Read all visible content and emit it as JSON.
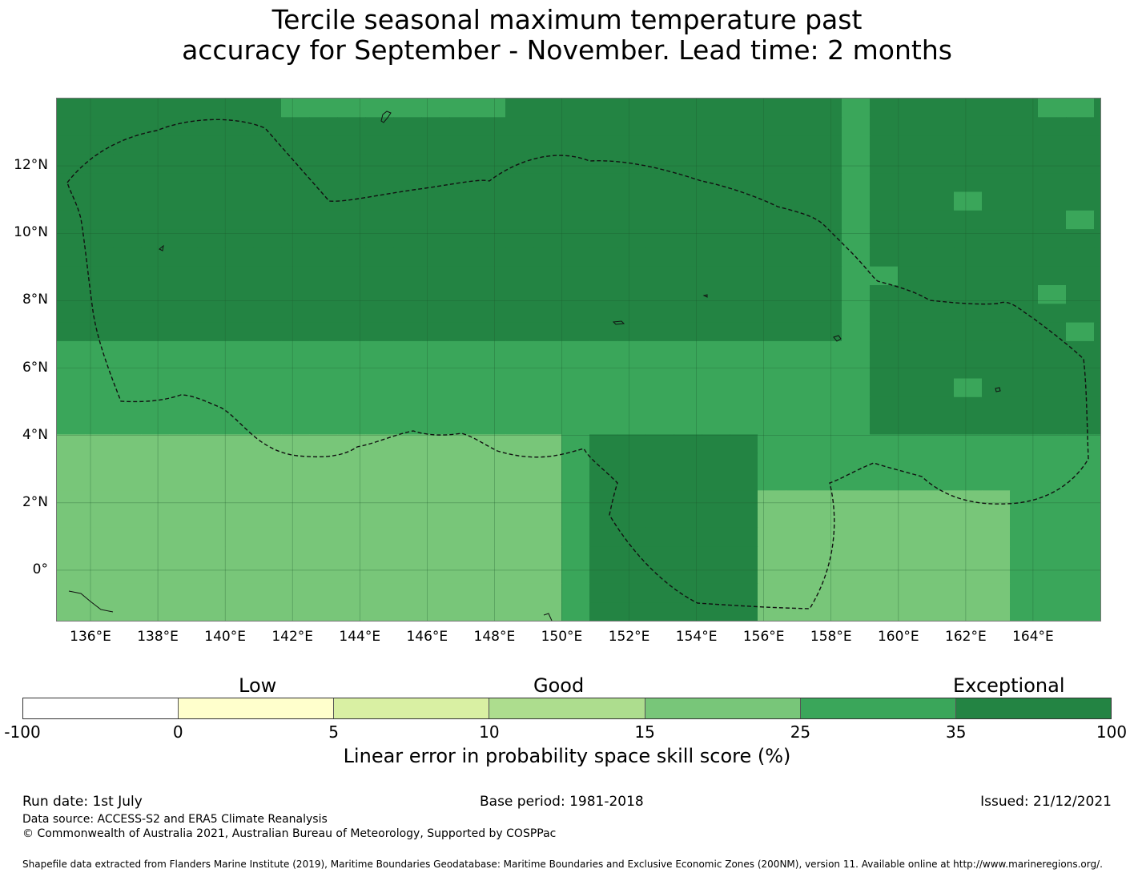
{
  "title": {
    "line1": "Tercile seasonal maximum temperature past",
    "line2": "accuracy for September - November. Lead time: 2 months"
  },
  "map": {
    "lon_range": [
      135,
      166
    ],
    "lat_range": [
      -1.5,
      14
    ],
    "lat_ticks": [
      "12°N",
      "10°N",
      "8°N",
      "6°N",
      "4°N",
      "2°N",
      "0°"
    ],
    "lat_values": [
      12,
      10,
      8,
      6,
      4,
      2,
      0
    ],
    "lon_ticks": [
      "136°E",
      "138°E",
      "140°E",
      "142°E",
      "144°E",
      "146°E",
      "148°E",
      "150°E",
      "152°E",
      "154°E",
      "156°E",
      "158°E",
      "160°E",
      "162°E",
      "164°E"
    ],
    "lon_values": [
      136,
      138,
      140,
      142,
      144,
      146,
      148,
      150,
      152,
      154,
      156,
      158,
      160,
      162,
      164
    ],
    "gridlines": true,
    "eez_boundary": "dashed"
  },
  "colorbar": {
    "categories": [
      "Low",
      "Good",
      "Exceptional"
    ],
    "ticks": [
      "-100",
      "0",
      "5",
      "10",
      "15",
      "25",
      "35",
      "100"
    ],
    "colors": [
      "#ffffff",
      "#ffffcc",
      "#d9f0a3",
      "#addd8e",
      "#78c679",
      "#3aa65a",
      "#238443"
    ],
    "label": "Linear error in probability space skill score (%)"
  },
  "footer": {
    "run_date": "Run date: 1st July",
    "base_period": "Base period: 1981-2018",
    "issued": "Issued: 21/12/2021",
    "data_source": "Data source: ACCESS-S2 and ERA5 Climate Reanalysis",
    "copyright": "© Commonwealth of Australia 2021, Australian Bureau of Meteorology, Supported by COSPPac",
    "shapefile": "Shapefile data extracted from Flanders Marine Institute (2019), Maritime Boundaries Geodatabase: Maritime Boundaries and Exclusive Economic Zones (200NM), version 11. Available online at http://www.marineregions.org/."
  }
}
